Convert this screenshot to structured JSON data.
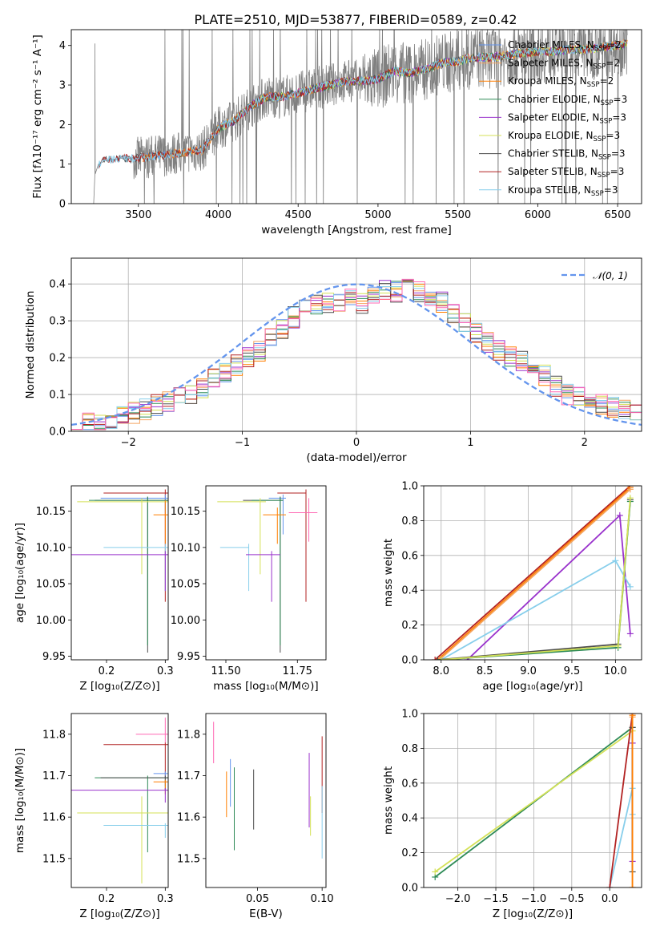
{
  "figure": {
    "title": "PLATE=2510, MJD=53877, FIBERID=0589, z=0.42"
  },
  "colors": {
    "chabrier_miles": "#6495ed",
    "salpeter_miles": "#f4a460",
    "kroupa_miles": "#ff7f00",
    "chabrier_elodie": "#2e8b57",
    "salpeter_elodie": "#9932cc",
    "kroupa_elodie": "#d4e157",
    "chabrier_stelib": "#4d4d4d",
    "salpeter_stelib": "#b22222",
    "kroupa_stelib": "#87ceeb",
    "pink": "#ff69b4",
    "data_gray": "#808080"
  },
  "chart_data": [
    {
      "id": "spectrum",
      "type": "line",
      "xlabel": "wavelength [Angstrom, rest frame]",
      "ylabel": "Flux [fλ10⁻¹⁷ erg cm⁻² s⁻¹ A⁻¹]",
      "xlim": [
        3080,
        6650
      ],
      "ylim": [
        0,
        4.4
      ],
      "xticks": [
        "3500",
        "4000",
        "4500",
        "5000",
        "5500",
        "6000",
        "6500"
      ],
      "yticks": [
        "0",
        "1",
        "2",
        "3",
        "4"
      ],
      "model_curve": {
        "x": [
          3230,
          3250,
          3300,
          3400,
          3500,
          3600,
          3700,
          3800,
          3900,
          4000,
          4100,
          4200,
          4300,
          4400,
          4500,
          4600,
          4700,
          4800,
          4900,
          5000,
          5100,
          5200,
          5300,
          5400,
          5500,
          5600,
          5700,
          5800,
          5900,
          6000,
          6100,
          6200,
          6300,
          6400,
          6500,
          6560
        ],
        "y": [
          0.75,
          1.0,
          1.1,
          1.15,
          1.15,
          1.2,
          1.25,
          1.3,
          1.35,
          1.9,
          2.1,
          2.45,
          2.7,
          2.7,
          2.8,
          2.9,
          3.0,
          3.1,
          3.1,
          3.15,
          3.35,
          3.3,
          3.4,
          3.55,
          3.6,
          3.7,
          3.7,
          3.75,
          3.8,
          3.85,
          3.85,
          3.9,
          3.9,
          3.95,
          4.0,
          4.05
        ]
      },
      "legend": [
        {
          "label": "Chabrier MILES, N",
          "sub": "SSP",
          "tail": "=2",
          "color_key": "chabrier_miles"
        },
        {
          "label": "Salpeter MILES, N",
          "sub": "SSP",
          "tail": "=2",
          "color_key": "salpeter_miles"
        },
        {
          "label": "Kroupa MILES, N",
          "sub": "SSP",
          "tail": "=2",
          "color_key": "kroupa_miles"
        },
        {
          "label": "Chabrier ELODIE, N",
          "sub": "SSP",
          "tail": "=3",
          "color_key": "chabrier_elodie"
        },
        {
          "label": "Salpeter ELODIE, N",
          "sub": "SSP",
          "tail": "=3",
          "color_key": "salpeter_elodie"
        },
        {
          "label": "Kroupa ELODIE, N",
          "sub": "SSP",
          "tail": "=3",
          "color_key": "kroupa_elodie"
        },
        {
          "label": "Chabrier STELIB, N",
          "sub": "SSP",
          "tail": "=3",
          "color_key": "chabrier_stelib"
        },
        {
          "label": "Salpeter STELIB, N",
          "sub": "SSP",
          "tail": "=3",
          "color_key": "salpeter_stelib"
        },
        {
          "label": "Kroupa STELIB, N",
          "sub": "SSP",
          "tail": "=3",
          "color_key": "kroupa_stelib"
        }
      ],
      "legend_position": "upper right"
    },
    {
      "id": "residuals",
      "type": "histogram",
      "xlabel": "(data-model)/error",
      "ylabel": "Normed distribution",
      "xlim": [
        -2.5,
        2.5
      ],
      "ylim": [
        0,
        0.47
      ],
      "xticks": [
        "−2",
        "−1",
        "0",
        "1",
        "2"
      ],
      "yticks": [
        "0.0",
        "0.1",
        "0.2",
        "0.3",
        "0.4"
      ],
      "grid": true,
      "bins": [
        -2.5,
        -2.4,
        -2.3,
        -2.2,
        -2.1,
        -2.0,
        -1.9,
        -1.8,
        -1.7,
        -1.6,
        -1.5,
        -1.4,
        -1.3,
        -1.2,
        -1.1,
        -1.0,
        -0.9,
        -0.8,
        -0.7,
        -0.6,
        -0.5,
        -0.4,
        -0.3,
        -0.2,
        -0.1,
        0.0,
        0.1,
        0.2,
        0.3,
        0.4,
        0.5,
        0.6,
        0.7,
        0.8,
        0.9,
        1.0,
        1.1,
        1.2,
        1.3,
        1.4,
        1.5,
        1.6,
        1.7,
        1.8,
        1.9,
        2.0,
        2.1,
        2.2,
        2.3,
        2.4
      ],
      "hist_envelope": [
        0.035,
        0.025,
        0.02,
        0.03,
        0.04,
        0.05,
        0.06,
        0.07,
        0.08,
        0.09,
        0.1,
        0.12,
        0.14,
        0.16,
        0.18,
        0.2,
        0.22,
        0.25,
        0.28,
        0.31,
        0.33,
        0.34,
        0.35,
        0.35,
        0.36,
        0.35,
        0.37,
        0.38,
        0.38,
        0.39,
        0.38,
        0.37,
        0.35,
        0.32,
        0.3,
        0.27,
        0.24,
        0.22,
        0.2,
        0.19,
        0.17,
        0.15,
        0.12,
        0.1,
        0.09,
        0.08,
        0.07,
        0.065,
        0.06,
        0.05
      ],
      "gaussian_label": "𝒩(0, 1)"
    },
    {
      "id": "age_vs_Z",
      "type": "errorbar",
      "xlabel": "Z [log₁₀(Z/Z⊙)]",
      "ylabel": "age  [log₁₀(age/yr)]",
      "xlim": [
        0.14,
        0.305
      ],
      "ylim": [
        9.945,
        10.185
      ],
      "xticks": [
        "0.2",
        "0.3"
      ],
      "yticks": [
        "9.95",
        "10.00",
        "10.05",
        "10.10",
        "10.15"
      ],
      "points": [
        {
          "x": 0.3,
          "y": 10.175,
          "xerr": [
            0.105,
            0.005
          ],
          "yerr": [
            0.15,
            0.005
          ],
          "color_key": "salpeter_stelib"
        },
        {
          "x": 0.3,
          "y": 10.168,
          "xerr": [
            0.11,
            0.005
          ],
          "yerr": [
            0.02,
            0.005
          ],
          "color_key": "chabrier_miles"
        },
        {
          "x": 0.27,
          "y": 10.165,
          "xerr": [
            0.09,
            0.035
          ],
          "yerr": [
            0.21,
            0.005
          ],
          "color_key": "chabrier_stelib"
        },
        {
          "x": 0.27,
          "y": 10.165,
          "xerr": [
            0.1,
            0.035
          ],
          "yerr": [
            0.2,
            0.005
          ],
          "color_key": "chabrier_elodie"
        },
        {
          "x": 0.26,
          "y": 10.163,
          "xerr": [
            0.11,
            0.045
          ],
          "yerr": [
            0.1,
            0.005
          ],
          "color_key": "kroupa_elodie"
        },
        {
          "x": 0.3,
          "y": 10.145,
          "xerr": [
            0.02,
            0.005
          ],
          "yerr": [
            0.04,
            0.02
          ],
          "color_key": "kroupa_miles"
        },
        {
          "x": 0.3,
          "y": 10.1,
          "xerr": [
            0.105,
            0.005
          ],
          "yerr": [
            0.06,
            0.005
          ],
          "color_key": "kroupa_stelib"
        },
        {
          "x": 0.3,
          "y": 10.09,
          "xerr": [
            0.16,
            0.005
          ],
          "yerr": [
            0.05,
            0.005
          ],
          "color_key": "salpeter_elodie"
        }
      ]
    },
    {
      "id": "age_vs_mass",
      "type": "errorbar",
      "xlabel": "mass [log₁₀(M/M⊙)]",
      "ylabel": "",
      "xlim": [
        11.43,
        11.85
      ],
      "ylim": [
        9.945,
        10.185
      ],
      "xticks": [
        "11.50",
        "11.75"
      ],
      "yticks": [
        "9.95",
        "10.00",
        "10.05",
        "10.10",
        "10.15"
      ],
      "points": [
        {
          "x": 11.78,
          "y": 10.175,
          "xerr": [
            0.1,
            0.0
          ],
          "yerr": [
            0.15,
            0.005
          ],
          "color_key": "salpeter_stelib"
        },
        {
          "x": 11.7,
          "y": 10.168,
          "xerr": [
            0.05,
            0.01
          ],
          "yerr": [
            0.05,
            0.005
          ],
          "color_key": "chabrier_miles"
        },
        {
          "x": 11.69,
          "y": 10.165,
          "xerr": [
            0.13,
            0.01
          ],
          "yerr": [
            0.21,
            0.005
          ],
          "color_key": "chabrier_stelib"
        },
        {
          "x": 11.69,
          "y": 10.165,
          "xerr": [
            0.1,
            0.01
          ],
          "yerr": [
            0.2,
            0.005
          ],
          "color_key": "chabrier_elodie"
        },
        {
          "x": 11.62,
          "y": 10.163,
          "xerr": [
            0.15,
            0.02
          ],
          "yerr": [
            0.1,
            0.005
          ],
          "color_key": "kroupa_elodie"
        },
        {
          "x": 11.79,
          "y": 10.148,
          "xerr": [
            0.07,
            0.03
          ],
          "yerr": [
            0.04,
            0.02
          ],
          "color_key": "pink"
        },
        {
          "x": 11.68,
          "y": 10.145,
          "xerr": [
            0.05,
            0.03
          ],
          "yerr": [
            0.04,
            0.01
          ],
          "color_key": "kroupa_miles"
        },
        {
          "x": 11.58,
          "y": 10.1,
          "xerr": [
            0.1,
            0.0
          ],
          "yerr": [
            0.06,
            0.005
          ],
          "color_key": "kroupa_stelib"
        },
        {
          "x": 11.66,
          "y": 10.09,
          "xerr": [
            0.09,
            0.03
          ],
          "yerr": [
            0.065,
            0.005
          ],
          "color_key": "salpeter_elodie"
        }
      ]
    },
    {
      "id": "massweight_vs_age",
      "type": "line",
      "xlabel": "age  [log₁₀(age/yr)]",
      "ylabel": "mass weight",
      "xlim": [
        7.8,
        10.3
      ],
      "ylim": [
        0,
        1.0
      ],
      "xticks": [
        "8.0",
        "8.5",
        "9.0",
        "9.5",
        "10.0"
      ],
      "yticks": [
        "0.0",
        "0.2",
        "0.4",
        "0.6",
        "0.8",
        "1.0"
      ],
      "grid": true,
      "series": [
        {
          "color_key": "salpeter_stelib",
          "x": [
            7.93,
            10.17
          ],
          "y": [
            0.0,
            1.0
          ]
        },
        {
          "color_key": "kroupa_miles",
          "x": [
            7.96,
            10.17
          ],
          "y": [
            0.0,
            0.99
          ]
        },
        {
          "color_key": "salpeter_miles",
          "x": [
            7.98,
            10.17
          ],
          "y": [
            0.0,
            0.98
          ]
        },
        {
          "color_key": "salpeter_elodie",
          "x": [
            8.3,
            10.05,
            10.17
          ],
          "y": [
            0.0,
            0.83,
            0.15
          ]
        },
        {
          "color_key": "kroupa_stelib",
          "x": [
            8.0,
            10.0,
            10.17
          ],
          "y": [
            0.0,
            0.57,
            0.42
          ]
        },
        {
          "color_key": "chabrier_stelib",
          "x": [
            7.96,
            10.03,
            10.17
          ],
          "y": [
            0.0,
            0.09,
            0.92
          ]
        },
        {
          "color_key": "chabrier_elodie",
          "x": [
            8.0,
            10.03,
            10.17
          ],
          "y": [
            0.0,
            0.07,
            0.91
          ]
        },
        {
          "color_key": "kroupa_elodie",
          "x": [
            8.0,
            10.03,
            10.17
          ],
          "y": [
            0.0,
            0.08,
            0.93
          ]
        }
      ]
    },
    {
      "id": "mass_vs_Z",
      "type": "errorbar",
      "xlabel": "Z [log₁₀(Z/Z⊙)]",
      "ylabel": "mass [log₁₀(M/M⊙)]",
      "xlim": [
        0.14,
        0.305
      ],
      "ylim": [
        11.43,
        11.85
      ],
      "xticks": [
        "0.2",
        "0.3"
      ],
      "yticks": [
        "11.5",
        "11.6",
        "11.7",
        "11.8"
      ],
      "points": [
        {
          "x": 0.3,
          "y": 11.8,
          "xerr": [
            0.05,
            0.005
          ],
          "yerr": [
            0.02,
            0.04
          ],
          "color_key": "pink"
        },
        {
          "x": 0.3,
          "y": 11.775,
          "xerr": [
            0.105,
            0.005
          ],
          "yerr": [
            0.08,
            0.005
          ],
          "color_key": "salpeter_stelib"
        },
        {
          "x": 0.3,
          "y": 11.705,
          "xerr": [
            0.02,
            0.005
          ],
          "yerr": [
            0.03,
            0.005
          ],
          "color_key": "chabrier_miles"
        },
        {
          "x": 0.27,
          "y": 11.695,
          "xerr": [
            0.09,
            0.035
          ],
          "yerr": [
            0.18,
            0.005
          ],
          "color_key": "chabrier_elodie"
        },
        {
          "x": 0.3,
          "y": 11.695,
          "xerr": [
            0.11,
            0.005
          ],
          "yerr": [
            0.03,
            0.005
          ],
          "color_key": "chabrier_stelib"
        },
        {
          "x": 0.3,
          "y": 11.685,
          "xerr": [
            0.02,
            0.005
          ],
          "yerr": [
            0.03,
            0.005
          ],
          "color_key": "kroupa_miles"
        },
        {
          "x": 0.3,
          "y": 11.665,
          "xerr": [
            0.16,
            0.005
          ],
          "yerr": [
            0.03,
            0.005
          ],
          "color_key": "salpeter_elodie"
        },
        {
          "x": 0.26,
          "y": 11.61,
          "xerr": [
            0.11,
            0.045
          ],
          "yerr": [
            0.17,
            0.04
          ],
          "color_key": "kroupa_elodie"
        },
        {
          "x": 0.3,
          "y": 11.58,
          "xerr": [
            0.105,
            0.005
          ],
          "yerr": [
            0.03,
            0.005
          ],
          "color_key": "kroupa_stelib"
        }
      ]
    },
    {
      "id": "mass_vs_ebv",
      "type": "errorbar",
      "xlabel": "E(B-V)",
      "ylabel": "",
      "xlim": [
        0.01,
        0.103
      ],
      "ylim": [
        11.43,
        11.85
      ],
      "xticks": [
        "0.05",
        "0.10"
      ],
      "yticks": [
        "11.5",
        "11.6",
        "11.7",
        "11.8"
      ],
      "points": [
        {
          "x": 0.016,
          "y": 11.78,
          "yerr": [
            0.05,
            0.05
          ],
          "color_key": "pink"
        },
        {
          "x": 0.026,
          "y": 11.655,
          "yerr": [
            0.055,
            0.055
          ],
          "color_key": "kroupa_miles"
        },
        {
          "x": 0.029,
          "y": 11.68,
          "yerr": [
            0.055,
            0.06
          ],
          "color_key": "chabrier_miles"
        },
        {
          "x": 0.032,
          "y": 11.62,
          "yerr": [
            0.1,
            0.1
          ],
          "color_key": "chabrier_elodie"
        },
        {
          "x": 0.047,
          "y": 11.63,
          "yerr": [
            0.06,
            0.085
          ],
          "color_key": "chabrier_stelib"
        },
        {
          "x": 0.09,
          "y": 11.665,
          "yerr": [
            0.09,
            0.09
          ],
          "color_key": "salpeter_elodie"
        },
        {
          "x": 0.091,
          "y": 11.605,
          "yerr": [
            0.05,
            0.045
          ],
          "color_key": "kroupa_elodie"
        },
        {
          "x": 0.1,
          "y": 11.7,
          "yerr": [
            0.09,
            0.095
          ],
          "color_key": "salpeter_stelib"
        },
        {
          "x": 0.1,
          "y": 11.58,
          "yerr": [
            0.08,
            0.095
          ],
          "color_key": "kroupa_stelib"
        }
      ]
    },
    {
      "id": "massweight_vs_Z",
      "type": "line",
      "xlabel": "Z [log₁₀(Z/Z⊙)]",
      "ylabel": "mass weight",
      "xlim": [
        -2.45,
        0.42
      ],
      "ylim": [
        0,
        1.0
      ],
      "xticks": [
        "−2.0",
        "−1.5",
        "−1.0",
        "−0.5",
        "0.0"
      ],
      "yticks": [
        "0.0",
        "0.2",
        "0.4",
        "0.6",
        "0.8",
        "1.0"
      ],
      "grid": true,
      "series": [
        {
          "color_key": "chabrier_elodie",
          "x": [
            -2.3,
            0.3
          ],
          "y": [
            0.06,
            0.92
          ]
        },
        {
          "color_key": "kroupa_elodie",
          "x": [
            -2.3,
            0.3
          ],
          "y": [
            0.09,
            0.9
          ]
        },
        {
          "color_key": "kroupa_stelib",
          "x": [
            0.0,
            0.3,
            0.3
          ],
          "y": [
            0.0,
            0.57,
            0.42
          ]
        },
        {
          "color_key": "salpeter_stelib",
          "x": [
            0.0,
            0.3
          ],
          "y": [
            0.0,
            1.0
          ]
        },
        {
          "color_key": "salpeter_miles",
          "x": [
            0.3,
            0.3
          ],
          "y": [
            0.0,
            0.98
          ]
        },
        {
          "color_key": "salpeter_elodie",
          "x": [
            0.3,
            0.3
          ],
          "y": [
            0.15,
            0.83
          ]
        },
        {
          "color_key": "chabrier_stelib",
          "x": [
            0.3,
            0.3
          ],
          "y": [
            0.09,
            0.92
          ]
        },
        {
          "color_key": "kroupa_miles",
          "x": [
            0.3,
            0.3
          ],
          "y": [
            0.0,
            0.99
          ]
        }
      ]
    }
  ]
}
